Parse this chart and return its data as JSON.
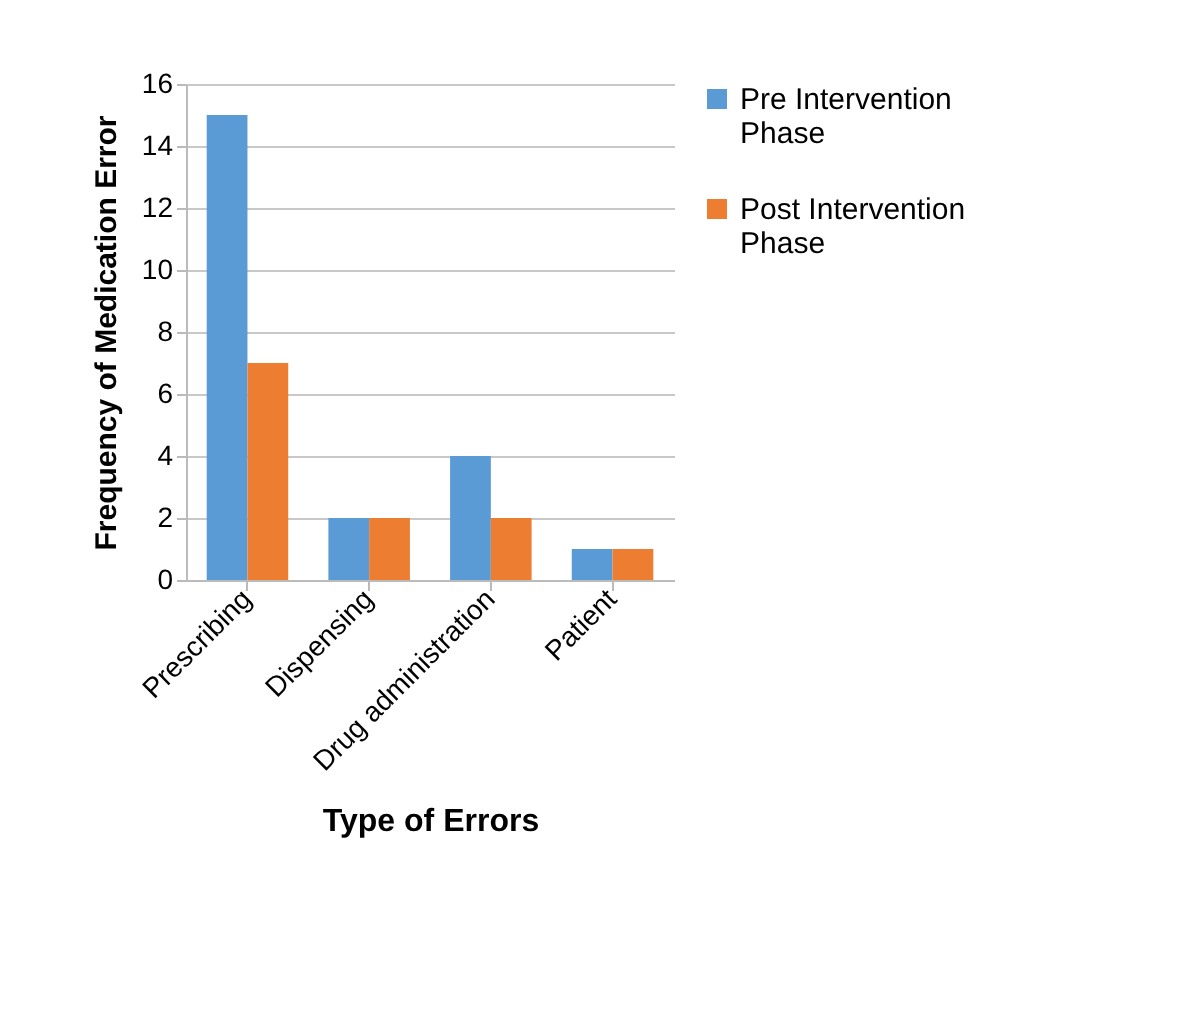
{
  "chart_data": {
    "type": "bar",
    "xlabel": "Type of Errors",
    "ylabel": "Frequency of Medication Error",
    "categories": [
      "Prescribing",
      "Dispensing",
      "Drug administration",
      "Patient"
    ],
    "series": [
      {
        "name": "Pre Intervention Phase",
        "color": "#5b9bd5",
        "values": [
          15,
          2,
          4,
          1
        ]
      },
      {
        "name": "Post Intervention Phase",
        "color": "#ed7d31",
        "values": [
          7,
          2,
          2,
          1
        ]
      }
    ],
    "ylim": [
      0,
      16
    ],
    "yticks": [
      0,
      2,
      4,
      6,
      8,
      10,
      12,
      14,
      16
    ],
    "grid": "y",
    "legend": "right"
  }
}
